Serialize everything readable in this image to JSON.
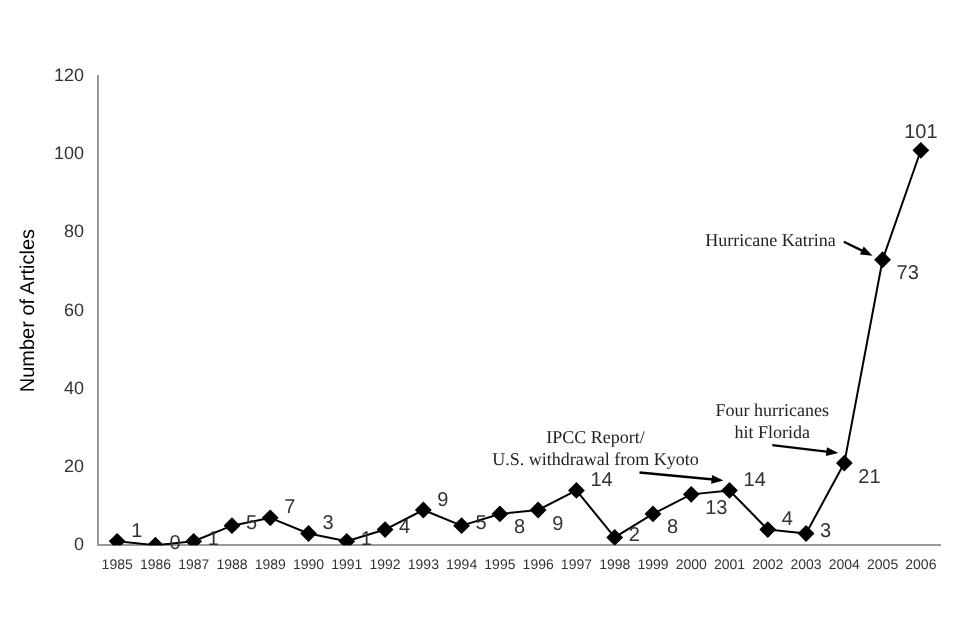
{
  "chart_data": {
    "type": "line",
    "ylabel": "Number of Articles",
    "categories": [
      "1985",
      "1986",
      "1987",
      "1988",
      "1989",
      "1990",
      "1991",
      "1992",
      "1993",
      "1994",
      "1995",
      "1996",
      "1997",
      "1998",
      "1999",
      "2000",
      "2001",
      "2002",
      "2003",
      "2004",
      "2005",
      "2006"
    ],
    "values": [
      1,
      0,
      1,
      5,
      7,
      3,
      1,
      4,
      9,
      5,
      8,
      9,
      14,
      2,
      8,
      13,
      14,
      4,
      3,
      21,
      73,
      101
    ],
    "color": "#000000",
    "marker": "diamond",
    "line_style": "solid",
    "grid": false,
    "data_labels": true,
    "ylim": [
      0,
      120
    ],
    "yticks": [
      0,
      20,
      40,
      60,
      80,
      100,
      120
    ],
    "annotations": [
      {
        "text": "IPCC Report/\nU.S. withdrawal from Kyoto",
        "x": "2001",
        "y": 14
      },
      {
        "text": "Four hurricanes\nhit Florida",
        "x": "2004",
        "y": 21
      },
      {
        "text": "Hurricane Katrina",
        "x": "2005",
        "y": 73
      }
    ]
  }
}
